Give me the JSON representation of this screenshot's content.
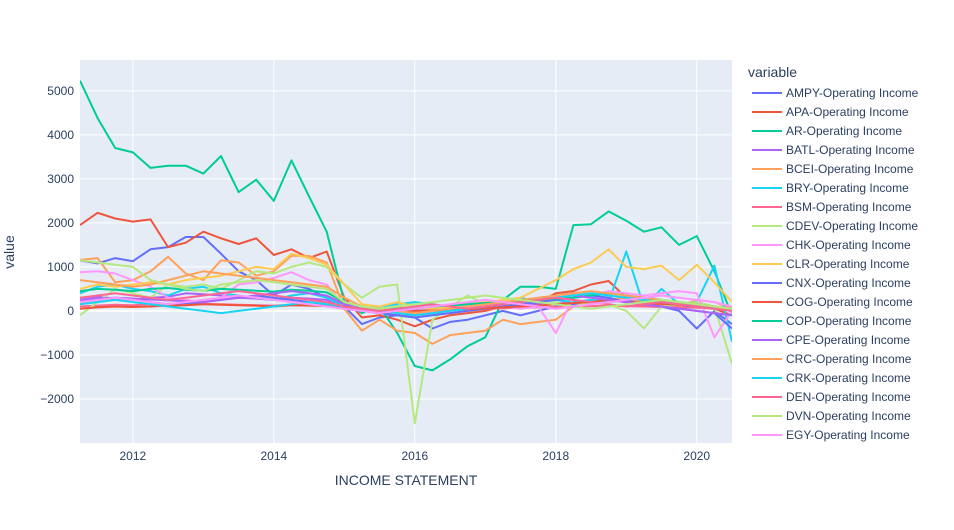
{
  "chart_data": {
    "type": "line",
    "xlabel": "INCOME STATEMENT",
    "ylabel": "value",
    "legend_title": "variable",
    "legend_position": "right",
    "grid": true,
    "xlim": [
      2011.25,
      2020.5
    ],
    "ylim": [
      -3000,
      5700
    ],
    "x_ticks": [
      2012,
      2014,
      2016,
      2018,
      2020
    ],
    "x_tick_labels": [
      "2012",
      "2014",
      "2016",
      "2018",
      "2020"
    ],
    "y_ticks": [
      -2000,
      -1000,
      0,
      1000,
      2000,
      3000,
      4000,
      5000
    ],
    "y_tick_labels": [
      "−2000",
      "−1000",
      "0",
      "1000",
      "2000",
      "3000",
      "4000",
      "5000"
    ],
    "x": [
      2011.25,
      2011.5,
      2011.75,
      2012,
      2012.25,
      2012.5,
      2012.75,
      2013,
      2013.25,
      2013.5,
      2013.75,
      2014,
      2014.25,
      2014.5,
      2014.75,
      2015,
      2015.25,
      2015.5,
      2015.75,
      2016,
      2016.25,
      2016.5,
      2016.75,
      2017,
      2017.25,
      2017.5,
      2017.75,
      2018,
      2018.25,
      2018.5,
      2018.75,
      2019,
      2019.25,
      2019.5,
      2019.75,
      2020,
      2020.25,
      2020.5
    ],
    "series": [
      {
        "name": "AMPY-Operating Income",
        "color": "#636efa",
        "values": [
          1150,
          1080,
          1200,
          1130,
          1400,
          1450,
          1680,
          1680,
          1300,
          900,
          700,
          350,
          600,
          500,
          300,
          100,
          -300,
          -150,
          -100,
          -150,
          -400,
          -250,
          -200,
          -100,
          0,
          -100,
          0,
          100,
          150,
          200,
          200,
          250,
          150,
          100,
          0,
          -400,
          0,
          -300
        ]
      },
      {
        "name": "APA-Operating Income",
        "color": "#ef553b",
        "values": [
          1950,
          2230,
          2100,
          2030,
          2080,
          1450,
          1550,
          1800,
          1650,
          1520,
          1650,
          1270,
          1400,
          1200,
          1350,
          300,
          -150,
          -100,
          -200,
          -350,
          -200,
          -100,
          -50,
          0,
          100,
          150,
          200,
          400,
          450,
          600,
          680,
          300,
          250,
          200,
          150,
          100,
          50,
          -100
        ]
      },
      {
        "name": "AR-Operating Income",
        "color": "#00cc96",
        "values": [
          5230,
          4380,
          3700,
          3600,
          3250,
          3300,
          3300,
          3120,
          3520,
          2700,
          2980,
          2500,
          3420,
          2600,
          1800,
          200,
          -50,
          100,
          -500,
          -1250,
          -1350,
          -1100,
          -800,
          -600,
          250,
          550,
          550,
          500,
          1950,
          1970,
          2260,
          2050,
          1800,
          1900,
          1500,
          1700,
          900,
          -100
        ]
      },
      {
        "name": "BATL-Operating Income",
        "color": "#ab63fa",
        "values": [
          300,
          320,
          280,
          250,
          300,
          320,
          400,
          380,
          350,
          300,
          280,
          250,
          300,
          280,
          250,
          100,
          50,
          20,
          0,
          -50,
          0,
          20,
          50,
          80,
          100,
          120,
          150,
          180,
          200,
          220,
          250,
          200,
          180,
          150,
          120,
          100,
          80,
          50
        ]
      },
      {
        "name": "BCEI-Operating Income",
        "color": "#ffa15a",
        "values": [
          1160,
          1200,
          650,
          700,
          900,
          1230,
          850,
          700,
          1150,
          1100,
          800,
          900,
          1250,
          1250,
          1100,
          50,
          -450,
          -200,
          -450,
          -500,
          -750,
          -550,
          -500,
          -450,
          -200,
          -300,
          -250,
          -200,
          100,
          200,
          250,
          300,
          200,
          150,
          100,
          250,
          200,
          50
        ]
      },
      {
        "name": "BRY-Operating Income",
        "color": "#19d3f3",
        "values": [
          400,
          550,
          600,
          500,
          450,
          350,
          500,
          550,
          400,
          350,
          300,
          250,
          350,
          400,
          300,
          100,
          50,
          100,
          150,
          200,
          150,
          100,
          150,
          200,
          150,
          300,
          200,
          250,
          200,
          250,
          200,
          1350,
          100,
          500,
          150,
          200,
          1030,
          -700
        ]
      },
      {
        "name": "BSM-Operating Income",
        "color": "#ff6692",
        "values": [
          100,
          120,
          140,
          130,
          150,
          160,
          170,
          160,
          150,
          140,
          130,
          120,
          140,
          130,
          120,
          60,
          40,
          30,
          20,
          10,
          20,
          30,
          40,
          50,
          60,
          70,
          80,
          90,
          100,
          110,
          120,
          110,
          100,
          90,
          80,
          70,
          50,
          20
        ]
      },
      {
        "name": "CDEV-Operating Income",
        "color": "#b6e880",
        "values": [
          -100,
          200,
          500,
          400,
          300,
          600,
          550,
          600,
          500,
          700,
          900,
          850,
          1000,
          1100,
          1000,
          600,
          300,
          550,
          600,
          -2550,
          -200,
          100,
          350,
          150,
          200,
          150,
          100,
          200,
          100,
          200,
          150,
          0,
          -400,
          100,
          150,
          200,
          100,
          -1200
        ]
      },
      {
        "name": "CHK-Operating Income",
        "color": "#ff97ff",
        "values": [
          880,
          900,
          850,
          700,
          550,
          300,
          250,
          200,
          300,
          600,
          650,
          750,
          880,
          700,
          600,
          100,
          0,
          0,
          50,
          -100,
          0,
          50,
          100,
          150,
          100,
          50,
          100,
          -500,
          300,
          350,
          450,
          400,
          350,
          400,
          450,
          400,
          -600,
          0
        ]
      },
      {
        "name": "CLR-Operating Income",
        "color": "#fecb52",
        "values": [
          500,
          600,
          550,
          600,
          650,
          600,
          700,
          750,
          800,
          900,
          1000,
          950,
          1300,
          1200,
          1050,
          600,
          150,
          100,
          200,
          100,
          50,
          100,
          150,
          200,
          250,
          300,
          500,
          700,
          950,
          1100,
          1400,
          1000,
          950,
          1030,
          700,
          1050,
          650,
          200
        ]
      },
      {
        "name": "CNX-Operating Income",
        "color": "#636efa",
        "values": [
          200,
          250,
          300,
          280,
          200,
          150,
          180,
          200,
          250,
          300,
          350,
          300,
          250,
          200,
          150,
          50,
          0,
          -50,
          -100,
          -150,
          -100,
          -50,
          0,
          50,
          100,
          150,
          200,
          250,
          300,
          350,
          300,
          200,
          150,
          100,
          50,
          0,
          -50,
          -400
        ]
      },
      {
        "name": "COG-Operating Income",
        "color": "#ef553b",
        "values": [
          50,
          80,
          100,
          90,
          100,
          120,
          130,
          150,
          140,
          130,
          120,
          100,
          130,
          120,
          110,
          50,
          30,
          20,
          10,
          0,
          10,
          20,
          40,
          60,
          80,
          100,
          120,
          150,
          180,
          200,
          250,
          200,
          180,
          160,
          140,
          120,
          100,
          50
        ]
      },
      {
        "name": "COP-Operating Income",
        "color": "#00cc96",
        "values": [
          450,
          500,
          480,
          450,
          500,
          520,
          480,
          460,
          500,
          480,
          460,
          440,
          480,
          460,
          420,
          200,
          100,
          50,
          80,
          50,
          100,
          120,
          150,
          180,
          200,
          220,
          250,
          280,
          300,
          350,
          400,
          350,
          300,
          250,
          200,
          150,
          100,
          0
        ]
      },
      {
        "name": "CPE-Operating Income",
        "color": "#ab63fa",
        "values": [
          250,
          280,
          300,
          280,
          260,
          240,
          220,
          200,
          250,
          300,
          350,
          400,
          450,
          400,
          350,
          150,
          50,
          0,
          -50,
          -100,
          -50,
          0,
          50,
          100,
          150,
          200,
          250,
          300,
          350,
          300,
          250,
          200,
          150,
          100,
          50,
          0,
          -50,
          -100
        ]
      },
      {
        "name": "CRC-Operating Income",
        "color": "#ffa15a",
        "values": [
          700,
          650,
          600,
          550,
          600,
          700,
          800,
          900,
          850,
          800,
          750,
          700,
          650,
          600,
          550,
          300,
          100,
          50,
          0,
          -50,
          0,
          50,
          100,
          150,
          200,
          250,
          300,
          350,
          400,
          450,
          400,
          350,
          300,
          250,
          200,
          150,
          100,
          0
        ]
      },
      {
        "name": "CRK-Operating Income",
        "color": "#19d3f3",
        "values": [
          150,
          200,
          250,
          200,
          150,
          100,
          50,
          0,
          -50,
          0,
          50,
          100,
          150,
          200,
          150,
          100,
          50,
          0,
          -50,
          -100,
          -50,
          0,
          50,
          100,
          150,
          200,
          250,
          300,
          350,
          400,
          350,
          300,
          250,
          200,
          150,
          100,
          50,
          0
        ]
      },
      {
        "name": "DEN-Operating Income",
        "color": "#ff6692",
        "values": [
          300,
          350,
          400,
          350,
          300,
          250,
          300,
          350,
          400,
          450,
          400,
          350,
          300,
          250,
          200,
          100,
          50,
          0,
          50,
          100,
          150,
          100,
          50,
          100,
          150,
          200,
          250,
          300,
          250,
          200,
          150,
          100,
          150,
          200,
          150,
          100,
          50,
          0
        ]
      },
      {
        "name": "DVN-Operating Income",
        "color": "#b6e880",
        "values": [
          1150,
          1100,
          1050,
          1000,
          700,
          600,
          500,
          450,
          600,
          650,
          700,
          650,
          600,
          550,
          500,
          200,
          100,
          50,
          100,
          150,
          200,
          250,
          300,
          350,
          300,
          250,
          200,
          150,
          100,
          50,
          100,
          150,
          200,
          250,
          200,
          150,
          100,
          50
        ]
      },
      {
        "name": "EGY-Operating Income",
        "color": "#ff97ff",
        "values": [
          200,
          250,
          300,
          250,
          200,
          150,
          200,
          250,
          300,
          350,
          300,
          250,
          200,
          150,
          100,
          50,
          0,
          -50,
          0,
          50,
          100,
          150,
          200,
          250,
          200,
          150,
          100,
          50,
          100,
          150,
          200,
          250,
          300,
          350,
          300,
          250,
          200,
          100
        ]
      }
    ]
  }
}
